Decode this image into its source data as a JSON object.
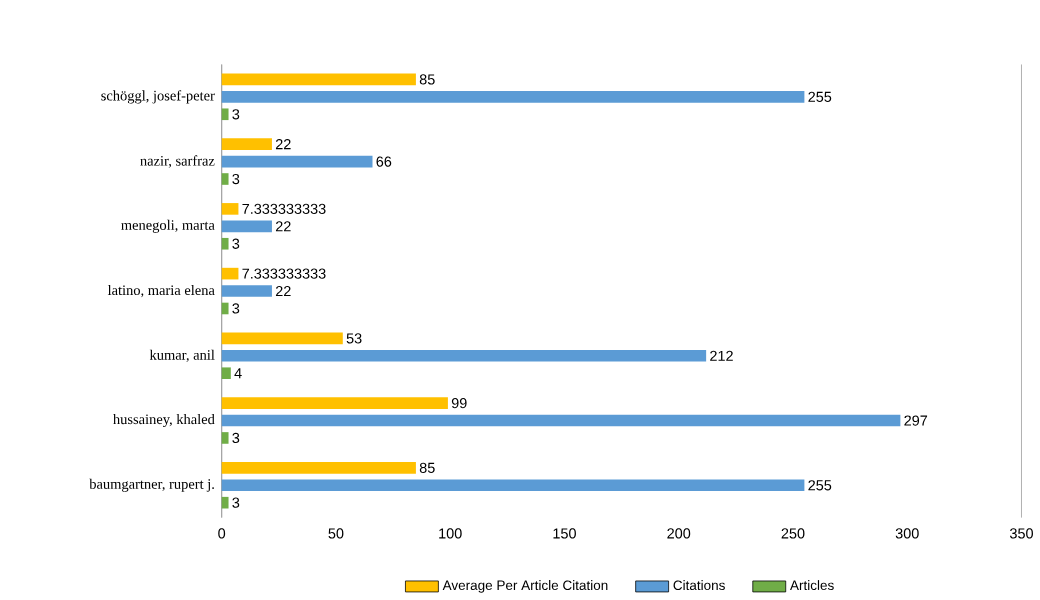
{
  "chart_data": {
    "type": "bar",
    "orientation": "horizontal",
    "categories": [
      "schöggl, josef-peter",
      "nazir, sarfraz",
      "menegoli, marta",
      "latino, maria elena",
      "kumar, anil",
      "hussainey, khaled",
      "baumgartner, rupert j."
    ],
    "series": [
      {
        "name": "Average Per Article Citation",
        "color": "#ffc000",
        "values": [
          85,
          22,
          7.333333333,
          7.333333333,
          53,
          99,
          85
        ]
      },
      {
        "name": "Citations",
        "color": "#5b9bd5",
        "values": [
          255,
          66,
          22,
          22,
          212,
          297,
          255
        ]
      },
      {
        "name": "Articles",
        "color": "#70ad47",
        "values": [
          3,
          3,
          3,
          3,
          4,
          3,
          3
        ]
      }
    ],
    "xlim": [
      0,
      350
    ],
    "xticks": [
      0,
      50,
      100,
      150,
      200,
      250,
      300,
      350
    ],
    "data_labels": true,
    "legend": "bottom"
  }
}
